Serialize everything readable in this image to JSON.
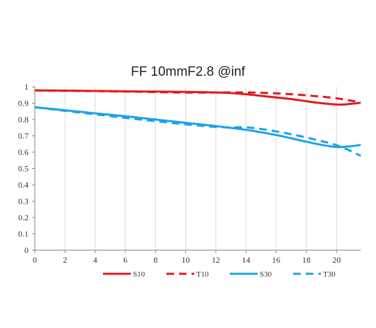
{
  "chart_data": {
    "type": "line",
    "title": "FF 10mmF2.8 @inf",
    "xlabel": "",
    "ylabel": "",
    "xlim": [
      0,
      21.6
    ],
    "ylim": [
      0,
      1
    ],
    "x_ticks": [
      0,
      2,
      4,
      6,
      8,
      10,
      12,
      14,
      16,
      18,
      20
    ],
    "y_ticks": [
      0,
      0.1,
      0.2,
      0.3,
      0.4,
      0.5,
      0.6,
      0.7,
      0.8,
      0.9,
      1
    ],
    "x_tick_labels": [
      "0",
      "2",
      "4",
      "6",
      "8",
      "10",
      "12",
      "14",
      "16",
      "18",
      "20"
    ],
    "y_tick_labels": [
      "0",
      "0.1",
      "0.2",
      "0.3",
      "0.4",
      "0.5",
      "0.6",
      "0.7",
      "0.8",
      "0.9",
      "1"
    ],
    "grid": "vertical",
    "legend_position": "bottom",
    "series": [
      {
        "name": "S10",
        "color": "#e31a1c",
        "style": "solid",
        "points": [
          [
            0,
            0.978
          ],
          [
            2,
            0.977
          ],
          [
            4,
            0.975
          ],
          [
            6,
            0.973
          ],
          [
            8,
            0.971
          ],
          [
            10,
            0.969
          ],
          [
            12,
            0.966
          ],
          [
            13,
            0.962
          ],
          [
            14,
            0.955
          ],
          [
            15,
            0.945
          ],
          [
            16,
            0.935
          ],
          [
            17,
            0.925
          ],
          [
            18,
            0.912
          ],
          [
            19,
            0.9
          ],
          [
            20,
            0.892
          ],
          [
            20.5,
            0.892
          ],
          [
            21,
            0.897
          ],
          [
            21.6,
            0.902
          ]
        ]
      },
      {
        "name": "T10",
        "color": "#e31a1c",
        "style": "dashed",
        "points": [
          [
            0,
            0.978
          ],
          [
            2,
            0.976
          ],
          [
            4,
            0.974
          ],
          [
            6,
            0.971
          ],
          [
            8,
            0.968
          ],
          [
            10,
            0.965
          ],
          [
            12,
            0.965
          ],
          [
            13,
            0.966
          ],
          [
            14,
            0.966
          ],
          [
            15,
            0.964
          ],
          [
            16,
            0.96
          ],
          [
            17,
            0.955
          ],
          [
            18,
            0.948
          ],
          [
            19,
            0.94
          ],
          [
            20,
            0.93
          ],
          [
            21,
            0.915
          ],
          [
            21.6,
            0.905
          ]
        ]
      },
      {
        "name": "S30",
        "color": "#1aa3e8",
        "style": "solid",
        "points": [
          [
            0,
            0.875
          ],
          [
            2,
            0.857
          ],
          [
            4,
            0.838
          ],
          [
            6,
            0.82
          ],
          [
            8,
            0.8
          ],
          [
            10,
            0.78
          ],
          [
            12,
            0.76
          ],
          [
            14,
            0.737
          ],
          [
            15,
            0.722
          ],
          [
            16,
            0.705
          ],
          [
            17,
            0.685
          ],
          [
            18,
            0.664
          ],
          [
            19,
            0.645
          ],
          [
            20,
            0.632
          ],
          [
            21,
            0.637
          ],
          [
            21.6,
            0.645
          ]
        ]
      },
      {
        "name": "T30",
        "color": "#1aa3e8",
        "style": "dashed",
        "points": [
          [
            0,
            0.875
          ],
          [
            2,
            0.853
          ],
          [
            4,
            0.832
          ],
          [
            6,
            0.81
          ],
          [
            8,
            0.79
          ],
          [
            10,
            0.77
          ],
          [
            12,
            0.755
          ],
          [
            13,
            0.752
          ],
          [
            14,
            0.752
          ],
          [
            15,
            0.742
          ],
          [
            16,
            0.727
          ],
          [
            17,
            0.71
          ],
          [
            18,
            0.69
          ],
          [
            19,
            0.668
          ],
          [
            20,
            0.643
          ],
          [
            21,
            0.605
          ],
          [
            21.6,
            0.578
          ]
        ]
      }
    ]
  }
}
